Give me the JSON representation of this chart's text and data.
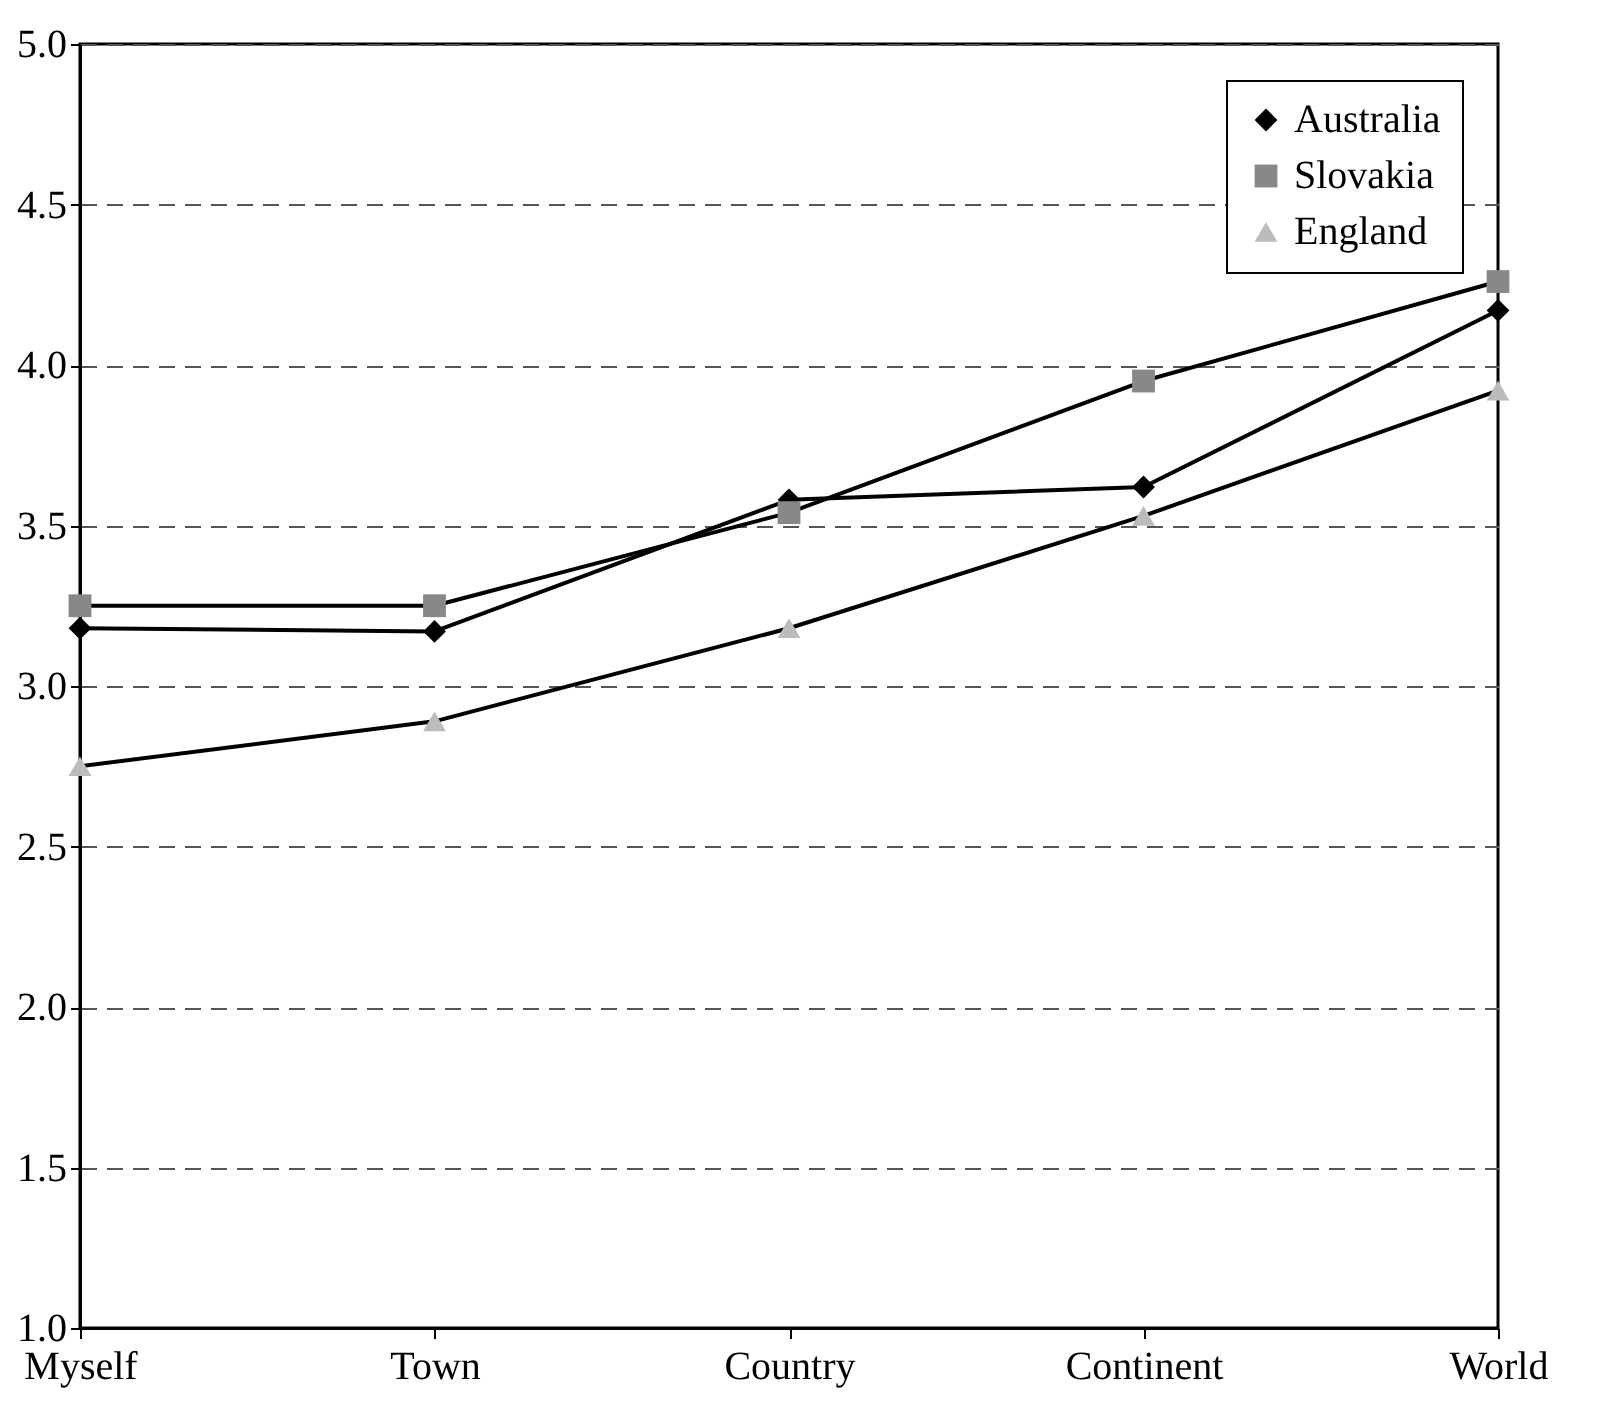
{
  "chart_data": {
    "type": "line",
    "categories": [
      "Myself",
      "Town",
      "Country",
      "Continent",
      "World"
    ],
    "series": [
      {
        "name": "Australia",
        "color": "#000000",
        "marker": "diamond",
        "values": [
          3.18,
          3.17,
          3.58,
          3.62,
          4.17
        ]
      },
      {
        "name": "Slovakia",
        "color": "#888888",
        "marker": "square",
        "values": [
          3.25,
          3.25,
          3.54,
          3.95,
          4.26
        ]
      },
      {
        "name": "England",
        "color": "#bbbbbb",
        "marker": "triangle",
        "values": [
          2.75,
          2.89,
          3.18,
          3.53,
          3.92
        ]
      }
    ],
    "ylim": [
      1,
      5
    ],
    "yticks": [
      {
        "value": 1,
        "label": "1.0"
      },
      {
        "value": 1.5,
        "label": "1.5"
      },
      {
        "value": 2,
        "label": "2.0"
      },
      {
        "value": 2.5,
        "label": "2.5"
      },
      {
        "value": 3,
        "label": "3.0"
      },
      {
        "value": 3.5,
        "label": "3.5"
      },
      {
        "value": 4,
        "label": "4.0"
      },
      {
        "value": 4.5,
        "label": "4.5"
      },
      {
        "value": 5,
        "label": "5.0"
      }
    ],
    "grid": "y",
    "legend": "top right",
    "line_style": "solid"
  }
}
